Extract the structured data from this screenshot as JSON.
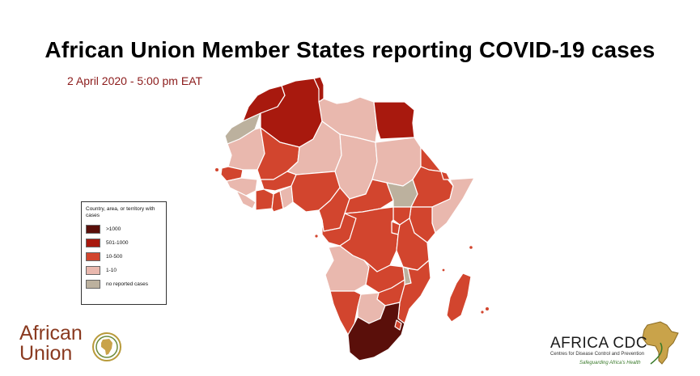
{
  "header": {
    "title": "African Union Member States reporting COVID-19 cases",
    "date": "2 April 2020 - 5:00 pm EAT"
  },
  "legend": {
    "title": "Country, area, or territory with cases",
    "items": [
      {
        "label": ">1000",
        "color": "#5a0f0a"
      },
      {
        "label": "501-1000",
        "color": "#a8190e"
      },
      {
        "label": "10-500",
        "color": "#d2452e"
      },
      {
        "label": "1-10",
        "color": "#e9b8ae"
      },
      {
        "label": "no reported cases",
        "color": "#bcb19e"
      }
    ]
  },
  "logos": {
    "african_union": {
      "line1": "African",
      "line2": "Union"
    },
    "africa_cdc": {
      "name": "AFRICA CDC",
      "subtitle": "Centres for Disease Control and Prevention",
      "tagline": "Safeguarding Africa's Health"
    }
  },
  "colors": {
    "title": "#000000",
    "subtitle": "#8b1a1a",
    "border": "#ffffff"
  }
}
